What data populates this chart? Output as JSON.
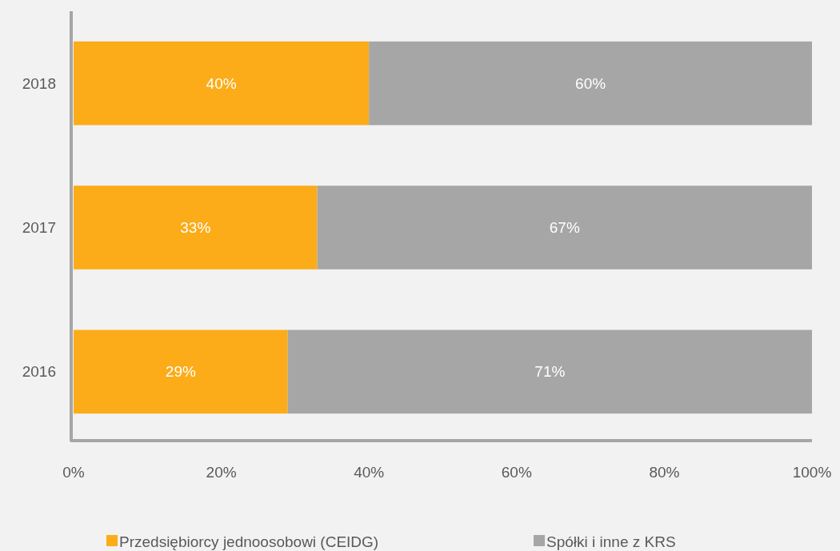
{
  "chart_data": {
    "type": "bar",
    "orientation": "horizontal",
    "stacked": true,
    "categories": [
      "2018",
      "2017",
      "2016"
    ],
    "series": [
      {
        "name": "Przedsiębiorcy jednoosobowi (CEIDG)",
        "color": "#fbac18",
        "values": [
          40,
          33,
          29
        ],
        "value_labels": [
          "40%",
          "33%",
          "29%"
        ]
      },
      {
        "name": "Spółki i inne z KRS",
        "color": "#a6a6a6",
        "values": [
          60,
          67,
          71
        ],
        "value_labels": [
          "60%",
          "67%",
          "71%"
        ]
      }
    ],
    "xlim": [
      0,
      100
    ],
    "xticks": [
      {
        "value": 0,
        "label": "0%"
      },
      {
        "value": 20,
        "label": "20%"
      },
      {
        "value": 40,
        "label": "40%"
      },
      {
        "value": 60,
        "label": "60%"
      },
      {
        "value": 80,
        "label": "80%"
      },
      {
        "value": 100,
        "label": "100%"
      }
    ],
    "grid": false,
    "legend": "bottom"
  }
}
